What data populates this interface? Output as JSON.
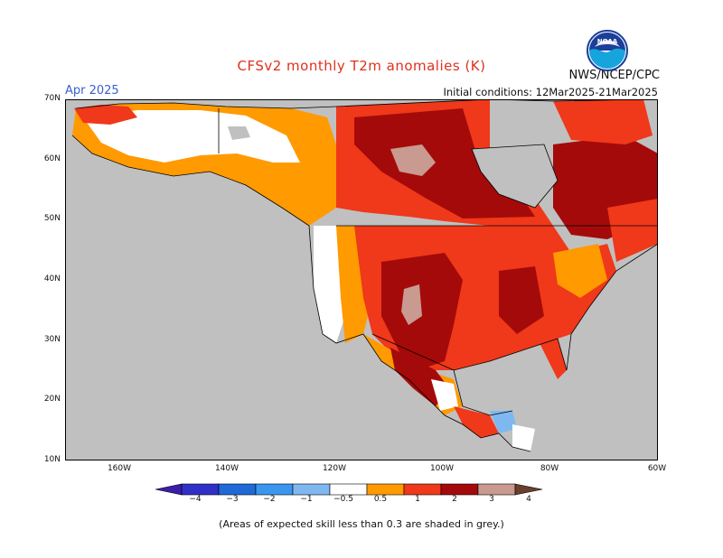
{
  "header": {
    "title": "CFSv2 monthly T2m anomalies (K)",
    "subtitle": "Apr 2025",
    "agency": "NWS/NCEP/CPC",
    "initial_conditions": "Initial conditions: 12Mar2025-21Mar2025",
    "logo_text": "NOAA"
  },
  "map": {
    "lat_labels": [
      "70N",
      "60N",
      "50N",
      "40N",
      "30N",
      "20N",
      "10N"
    ],
    "lon_labels": [
      "160W",
      "140W",
      "120W",
      "100W",
      "80W",
      "60W"
    ],
    "lat_values": [
      70,
      60,
      50,
      40,
      30,
      20,
      10
    ],
    "lon_values": [
      -160,
      -140,
      -120,
      -100,
      -80,
      -60
    ],
    "colors": {
      "ocean": "#c0c0c0",
      "low_skill": "#c0c0c0",
      "neutral": "#ffffff",
      "anom_0_5_1": "#ff9a00",
      "anom_1_2": "#f0381a",
      "anom_2_3": "#a50a0a",
      "anom_3_4": "#c89a90",
      "anom_m0_5_m1": "#7fb8f0",
      "coast": "#000000"
    }
  },
  "colorbar": {
    "labels": [
      "−4",
      "−3",
      "−2",
      "−1",
      "−0.5",
      "0.5",
      "1",
      "2",
      "3",
      "4"
    ],
    "colors": [
      "#3a1ea8",
      "#3030c8",
      "#1f6ad8",
      "#3b96f0",
      "#7fb8f0",
      "#ffffff",
      "#ff9a00",
      "#f0381a",
      "#a50a0a",
      "#c89a90",
      "#6b3e2e"
    ]
  },
  "footnote": "(Areas of expected skill less than 0.3 are shaded in grey.)"
}
